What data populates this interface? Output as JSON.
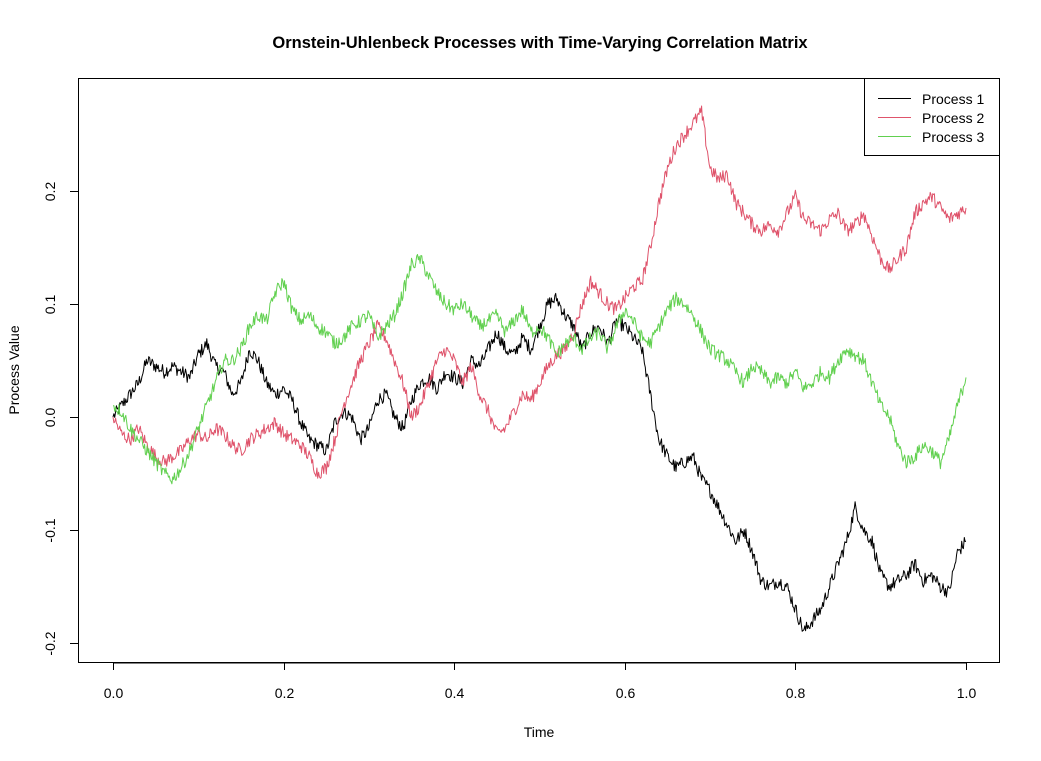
{
  "chart_data": {
    "type": "line",
    "title": "Ornstein-Uhlenbeck Processes with Time-Varying Correlation Matrix",
    "xlabel": "Time",
    "ylabel": "Process Value",
    "xlim": [
      -0.04,
      1.04
    ],
    "ylim": [
      -0.217,
      0.3
    ],
    "xticks": [
      0.0,
      0.2,
      0.4,
      0.6,
      0.8,
      1.0
    ],
    "xtick_labels": [
      "0.0",
      "0.2",
      "0.4",
      "0.6",
      "0.8",
      "1.0"
    ],
    "yticks": [
      -0.2,
      -0.1,
      0.0,
      0.1,
      0.2
    ],
    "ytick_labels": [
      "-0.2",
      "-0.1",
      "0.0",
      "0.1",
      "0.2"
    ],
    "grid": false,
    "legend_position": "top-right",
    "x": [
      0.0,
      0.01,
      0.02,
      0.03,
      0.04,
      0.05,
      0.06,
      0.07,
      0.08,
      0.09,
      0.1,
      0.11,
      0.12,
      0.13,
      0.14,
      0.15,
      0.16,
      0.17,
      0.18,
      0.19,
      0.2,
      0.21,
      0.22,
      0.23,
      0.24,
      0.25,
      0.26,
      0.27,
      0.28,
      0.29,
      0.3,
      0.31,
      0.32,
      0.33,
      0.34,
      0.35,
      0.36,
      0.37,
      0.38,
      0.39,
      0.4,
      0.41,
      0.42,
      0.43,
      0.44,
      0.45,
      0.46,
      0.47,
      0.48,
      0.49,
      0.5,
      0.51,
      0.52,
      0.53,
      0.54,
      0.55,
      0.56,
      0.57,
      0.58,
      0.59,
      0.6,
      0.61,
      0.62,
      0.63,
      0.64,
      0.65,
      0.66,
      0.67,
      0.68,
      0.69,
      0.7,
      0.71,
      0.72,
      0.73,
      0.74,
      0.75,
      0.76,
      0.77,
      0.78,
      0.79,
      0.8,
      0.81,
      0.82,
      0.83,
      0.84,
      0.85,
      0.86,
      0.87,
      0.88,
      0.89,
      0.9,
      0.91,
      0.92,
      0.93,
      0.94,
      0.95,
      0.96,
      0.97,
      0.98,
      0.99,
      1.0
    ],
    "series": [
      {
        "name": "Process 1",
        "color": "#000000",
        "values": [
          0.0,
          0.01,
          0.02,
          0.03,
          0.05,
          0.045,
          0.04,
          0.045,
          0.04,
          0.035,
          0.055,
          0.065,
          0.045,
          0.04,
          0.02,
          0.03,
          0.06,
          0.05,
          0.03,
          0.02,
          0.025,
          0.015,
          -0.005,
          -0.02,
          -0.025,
          -0.03,
          -0.005,
          0.005,
          0.0,
          -0.02,
          -0.01,
          0.015,
          0.02,
          0.0,
          -0.01,
          0.015,
          0.03,
          0.035,
          0.025,
          0.04,
          0.035,
          0.03,
          0.05,
          0.045,
          0.06,
          0.075,
          0.06,
          0.055,
          0.07,
          0.06,
          0.08,
          0.1,
          0.105,
          0.09,
          0.08,
          0.06,
          0.075,
          0.08,
          0.065,
          0.085,
          0.08,
          0.07,
          0.06,
          0.02,
          -0.02,
          -0.035,
          -0.045,
          -0.04,
          -0.035,
          -0.055,
          -0.065,
          -0.08,
          -0.095,
          -0.11,
          -0.1,
          -0.12,
          -0.145,
          -0.15,
          -0.145,
          -0.15,
          -0.17,
          -0.19,
          -0.18,
          -0.17,
          -0.15,
          -0.13,
          -0.11,
          -0.08,
          -0.1,
          -0.11,
          -0.14,
          -0.15,
          -0.145,
          -0.14,
          -0.13,
          -0.145,
          -0.14,
          -0.15,
          -0.155,
          -0.12,
          -0.11
        ]
      },
      {
        "name": "Process 2",
        "color": "#DF536B",
        "values": [
          0.0,
          -0.015,
          -0.02,
          -0.01,
          -0.025,
          -0.035,
          -0.04,
          -0.035,
          -0.03,
          -0.02,
          -0.015,
          -0.02,
          -0.01,
          -0.015,
          -0.025,
          -0.03,
          -0.02,
          -0.015,
          -0.01,
          -0.005,
          -0.015,
          -0.02,
          -0.025,
          -0.035,
          -0.05,
          -0.045,
          -0.02,
          0.01,
          0.03,
          0.05,
          0.065,
          0.08,
          0.07,
          0.05,
          0.03,
          0.0,
          0.01,
          0.03,
          0.05,
          0.06,
          0.05,
          0.03,
          0.045,
          0.02,
          0.005,
          -0.015,
          -0.01,
          0.005,
          0.02,
          0.015,
          0.03,
          0.045,
          0.055,
          0.06,
          0.075,
          0.1,
          0.12,
          0.11,
          0.1,
          0.095,
          0.105,
          0.115,
          0.12,
          0.15,
          0.19,
          0.22,
          0.24,
          0.25,
          0.26,
          0.27,
          0.22,
          0.21,
          0.215,
          0.19,
          0.18,
          0.17,
          0.165,
          0.17,
          0.165,
          0.18,
          0.195,
          0.175,
          0.17,
          0.165,
          0.175,
          0.18,
          0.165,
          0.17,
          0.18,
          0.16,
          0.14,
          0.13,
          0.14,
          0.15,
          0.18,
          0.19,
          0.195,
          0.185,
          0.175,
          0.18,
          0.185
        ]
      },
      {
        "name": "Process 3",
        "color": "#61D04F",
        "values": [
          0.01,
          0.005,
          -0.01,
          -0.02,
          -0.03,
          -0.04,
          -0.05,
          -0.055,
          -0.045,
          -0.03,
          -0.01,
          0.01,
          0.03,
          0.05,
          0.05,
          0.06,
          0.08,
          0.09,
          0.085,
          0.11,
          0.12,
          0.095,
          0.085,
          0.09,
          0.08,
          0.075,
          0.065,
          0.07,
          0.08,
          0.085,
          0.09,
          0.07,
          0.08,
          0.09,
          0.11,
          0.135,
          0.14,
          0.125,
          0.11,
          0.1,
          0.095,
          0.1,
          0.09,
          0.08,
          0.085,
          0.09,
          0.075,
          0.085,
          0.095,
          0.075,
          0.08,
          0.07,
          0.055,
          0.065,
          0.07,
          0.06,
          0.07,
          0.075,
          0.06,
          0.08,
          0.095,
          0.085,
          0.07,
          0.065,
          0.08,
          0.095,
          0.105,
          0.1,
          0.09,
          0.075,
          0.06,
          0.055,
          0.05,
          0.04,
          0.03,
          0.045,
          0.04,
          0.03,
          0.035,
          0.03,
          0.04,
          0.025,
          0.03,
          0.04,
          0.035,
          0.05,
          0.06,
          0.055,
          0.05,
          0.03,
          0.01,
          0.0,
          -0.025,
          -0.04,
          -0.035,
          -0.025,
          -0.03,
          -0.04,
          -0.02,
          0.01,
          0.035
        ]
      }
    ]
  }
}
